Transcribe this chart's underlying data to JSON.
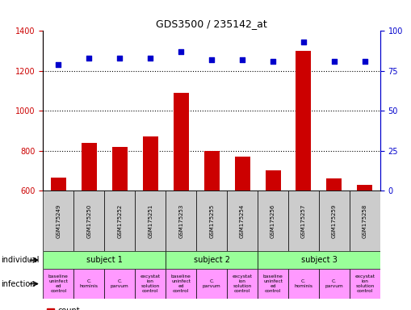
{
  "title": "GDS3500 / 235142_at",
  "samples": [
    "GSM175249",
    "GSM175250",
    "GSM175252",
    "GSM175251",
    "GSM175253",
    "GSM175255",
    "GSM175254",
    "GSM175256",
    "GSM175257",
    "GSM175259",
    "GSM175258"
  ],
  "counts": [
    665,
    840,
    820,
    870,
    1090,
    800,
    770,
    700,
    1300,
    660,
    630
  ],
  "percentile_ranks": [
    79,
    83,
    83,
    83,
    87,
    82,
    82,
    81,
    93,
    81,
    81
  ],
  "ylim_left": [
    600,
    1400
  ],
  "ylim_right": [
    0,
    100
  ],
  "yticks_left": [
    600,
    800,
    1000,
    1200,
    1400
  ],
  "yticks_right": [
    0,
    25,
    50,
    75,
    100
  ],
  "bar_color": "#cc0000",
  "dot_color": "#0000cc",
  "subjects": [
    {
      "label": "subject 1",
      "start": 0,
      "end": 4
    },
    {
      "label": "subject 2",
      "start": 4,
      "end": 7
    },
    {
      "label": "subject 3",
      "start": 7,
      "end": 11
    }
  ],
  "infection_labels": [
    "baseline\nuninfect\ned\ncontrol",
    "C.\nhominis",
    "C.\nparvum",
    "excystat-\nion\nsolution\ncontrol",
    "baseline\nuninfect\ned\ncontrol",
    "C.\nparvum",
    "excystat-\nion\nsolution\ncontrol",
    "baseline\nuninfect\ned\ncontrol",
    "C.\nhominis",
    "C.\nparvum",
    "excystat-\nion\nsolution\ncontrol"
  ],
  "subject_color": "#99ff99",
  "sample_bg_color": "#cccccc",
  "infection_color": "#ff99ff",
  "legend_count_color": "#cc0000",
  "legend_dot_color": "#0000cc",
  "left_tick_color": "#cc0000",
  "right_tick_color": "#0000cc"
}
